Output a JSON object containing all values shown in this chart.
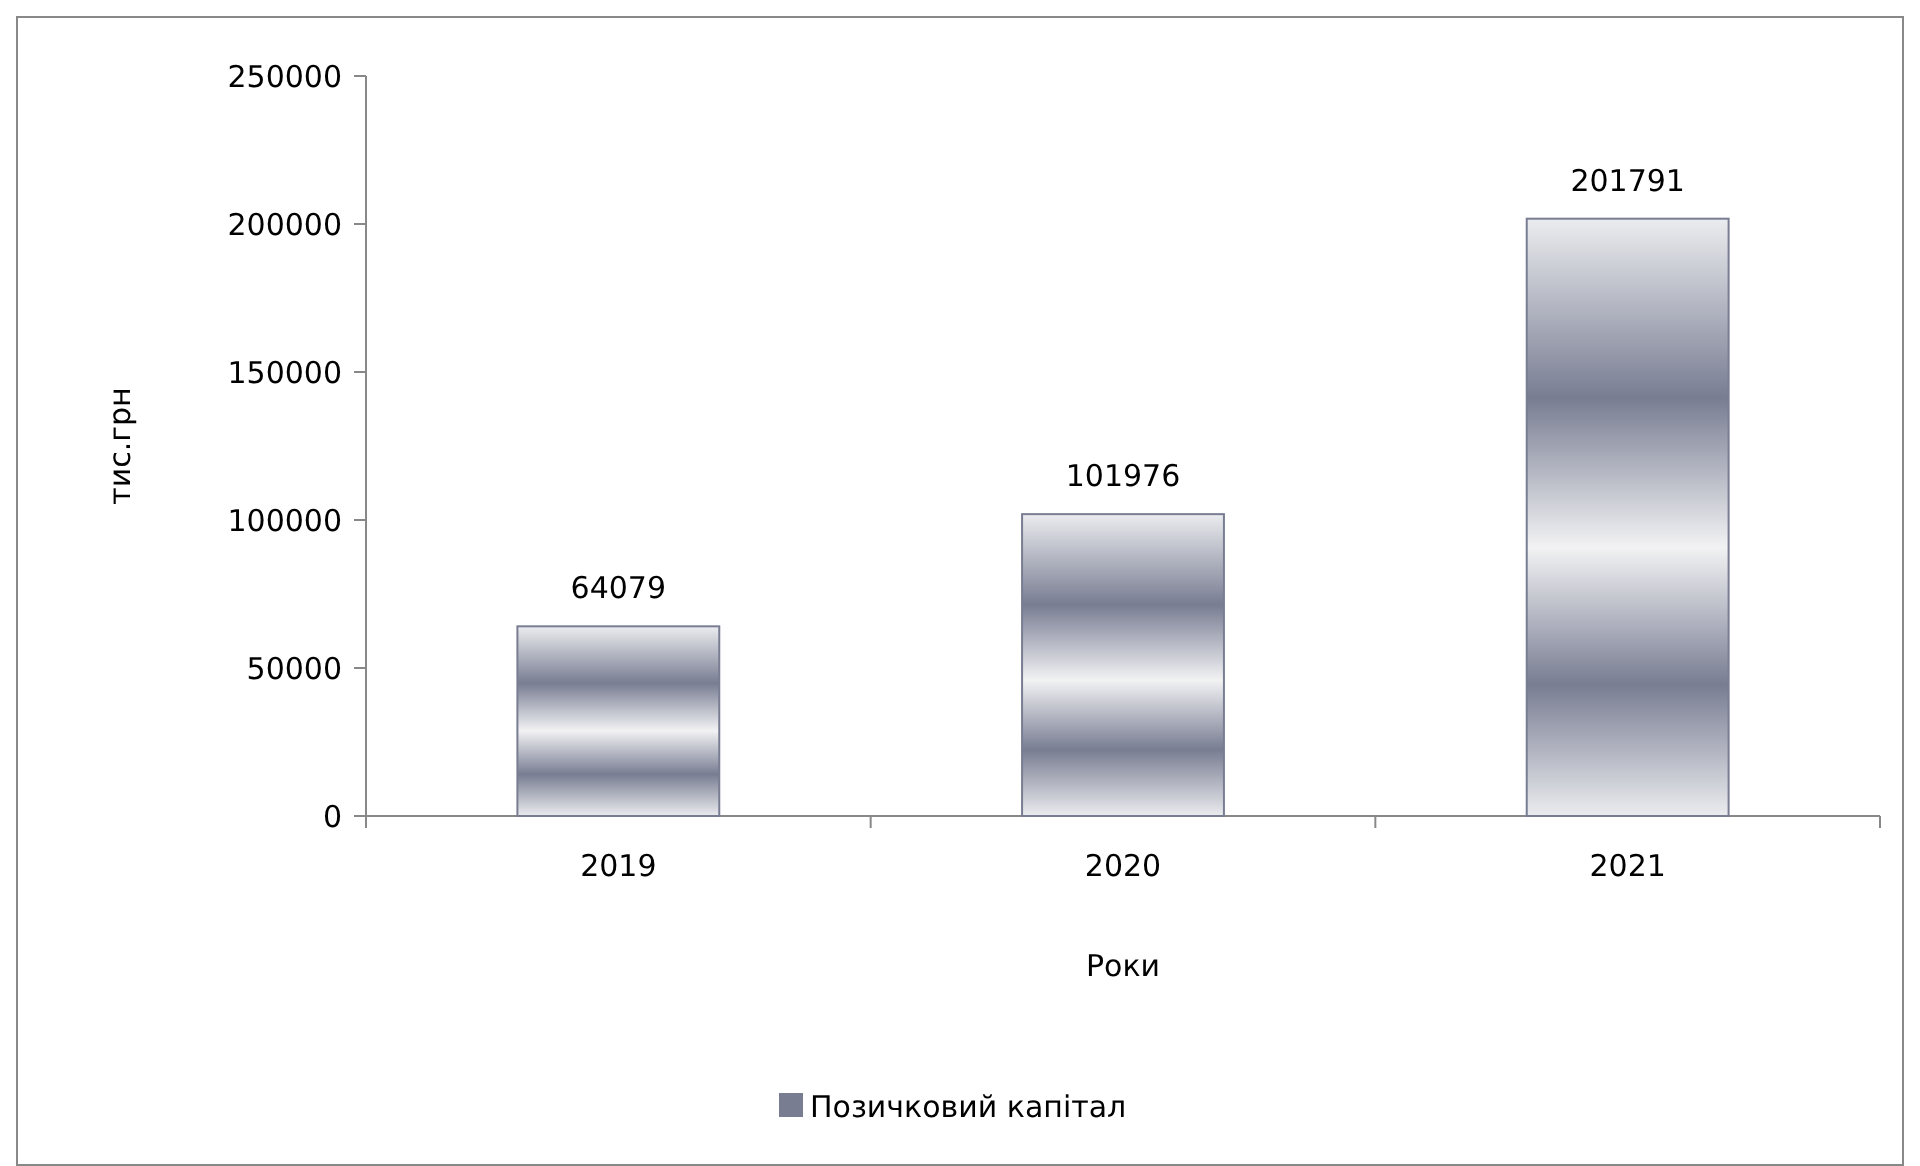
{
  "chart_data": {
    "type": "bar",
    "categories": [
      "2019",
      "2020",
      "2021"
    ],
    "series": [
      {
        "name": "Позичковий капітал",
        "color": "#787d92",
        "values": [
          64079,
          101976,
          201791
        ]
      }
    ],
    "xlabel": "Роки",
    "ylabel": "тис.грн",
    "ylim": [
      0,
      250000
    ],
    "yticks": [
      0,
      50000,
      100000,
      150000,
      200000,
      250000
    ],
    "data_labels": true,
    "legend": "bottom"
  }
}
